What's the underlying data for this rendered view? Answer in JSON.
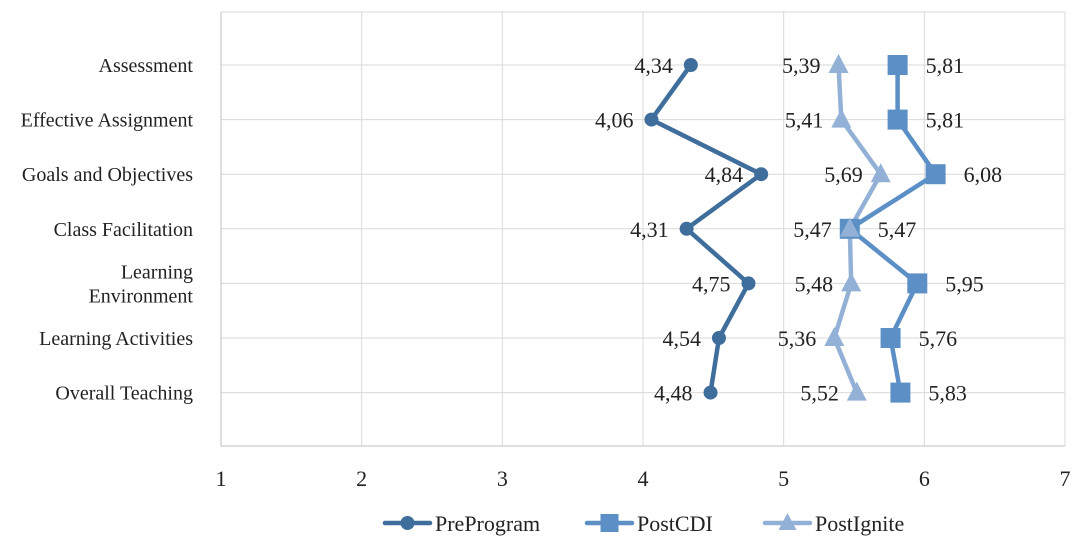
{
  "chart_data": {
    "type": "line",
    "orientation": "horizontal",
    "categories": [
      "Assessment",
      "Effective Assignment",
      "Goals and Objectives",
      "Class Facilitation",
      "Learning Environment",
      "Learning Activities",
      "Overall Teaching"
    ],
    "category_lines": [
      [
        "Assessment"
      ],
      [
        "Effective Assignment"
      ],
      [
        "Goals and Objectives"
      ],
      [
        "Class Facilitation"
      ],
      [
        "Learning",
        "Environment"
      ],
      [
        "Learning Activities"
      ],
      [
        "Overall Teaching"
      ]
    ],
    "x_ticks": [
      "1",
      "2",
      "3",
      "4",
      "5",
      "6",
      "7"
    ],
    "xlim": [
      1,
      7
    ],
    "grid": true,
    "legend_position": "bottom",
    "series": [
      {
        "name": "PreProgram",
        "marker": "circle",
        "color": "#3f6e9c",
        "values": [
          4.34,
          4.06,
          4.84,
          4.31,
          4.75,
          4.54,
          4.48
        ],
        "labels": [
          "4,34",
          "4,06",
          "4,84",
          "4,31",
          "4,75",
          "4,54",
          "4,48"
        ]
      },
      {
        "name": "PostCDI",
        "marker": "square",
        "color": "#5b8fc6",
        "values": [
          5.81,
          5.81,
          6.08,
          5.47,
          5.95,
          5.76,
          5.83
        ],
        "labels": [
          "5,81",
          "5,81",
          "6,08",
          "5,47",
          "5,95",
          "5,76",
          "5,83"
        ]
      },
      {
        "name": "PostIgnite",
        "marker": "triangle",
        "color": "#93b1d6",
        "values": [
          5.39,
          5.41,
          5.69,
          5.47,
          5.48,
          5.36,
          5.52
        ],
        "labels": [
          "5,39",
          "5,41",
          "5,69",
          "5,47",
          "5,48",
          "5,36",
          "5,52"
        ]
      }
    ]
  }
}
